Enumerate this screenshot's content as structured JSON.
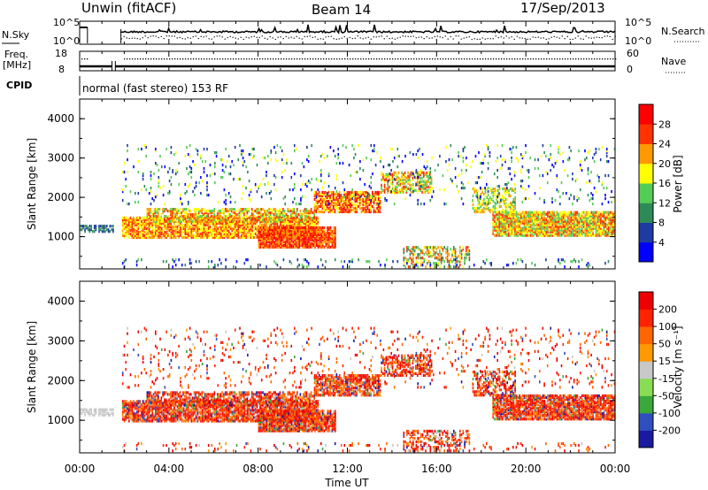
{
  "header": {
    "station": "Unwin (fitACF)",
    "beam": "Beam 14",
    "date": "17/Sep/2013"
  },
  "noise_panel": {
    "left_label": "N.Sky",
    "right_label": "N.Search",
    "left_ticks": [
      "10^5",
      "10^0"
    ],
    "right_ticks": [
      "10^5",
      "10^0"
    ]
  },
  "freq_panel": {
    "left_label_1": "Freq.",
    "left_label_2": "[MHz]",
    "right_label": "Nave",
    "left_ticks": [
      "18",
      "8"
    ],
    "right_ticks": [
      "60",
      "0"
    ]
  },
  "cpid_panel": {
    "label": "CPID",
    "mode_text": "normal (fast stereo) 153 RF"
  },
  "chart_data": [
    {
      "type": "heatmap",
      "quantity": "Power",
      "ylabel": "Slant Range [km]",
      "ylim": [
        180,
        4500
      ],
      "y_ticks": [
        "1000",
        "2000",
        "3000",
        "4000"
      ],
      "xlim": [
        0,
        24
      ],
      "colorbar_label": "Power [dB]",
      "colorbar_ticks": [
        "4",
        "8",
        "12",
        "16",
        "20",
        "24",
        "28"
      ],
      "colors": [
        "#0000ff",
        "#1e3ca0",
        "#2e8b57",
        "#55cc55",
        "#ffff00",
        "#ff9900",
        "#ff3300",
        "#ff0000"
      ]
    },
    {
      "type": "heatmap",
      "quantity": "Velocity",
      "ylabel": "Slant Range [km]",
      "ylim": [
        180,
        4500
      ],
      "y_ticks": [
        "1000",
        "2000",
        "3000",
        "4000"
      ],
      "xlim": [
        0,
        24
      ],
      "colorbar_label": "Velocity [m s⁻¹]",
      "colorbar_ticks": [
        "200",
        "100",
        "50",
        "15",
        "-15",
        "-50",
        "-100",
        "-200"
      ],
      "colors": [
        "#1a1aa0",
        "#2f4fbf",
        "#3aa83a",
        "#88dd55",
        "#c8c8c8",
        "#ff9900",
        "#ff6600",
        "#ff2200",
        "#ee0000"
      ]
    }
  ],
  "x_axis": {
    "label": "Time UT",
    "ticks": [
      "00:00",
      "04:00",
      "08:00",
      "12:00",
      "16:00",
      "20:00",
      "00:00"
    ]
  }
}
